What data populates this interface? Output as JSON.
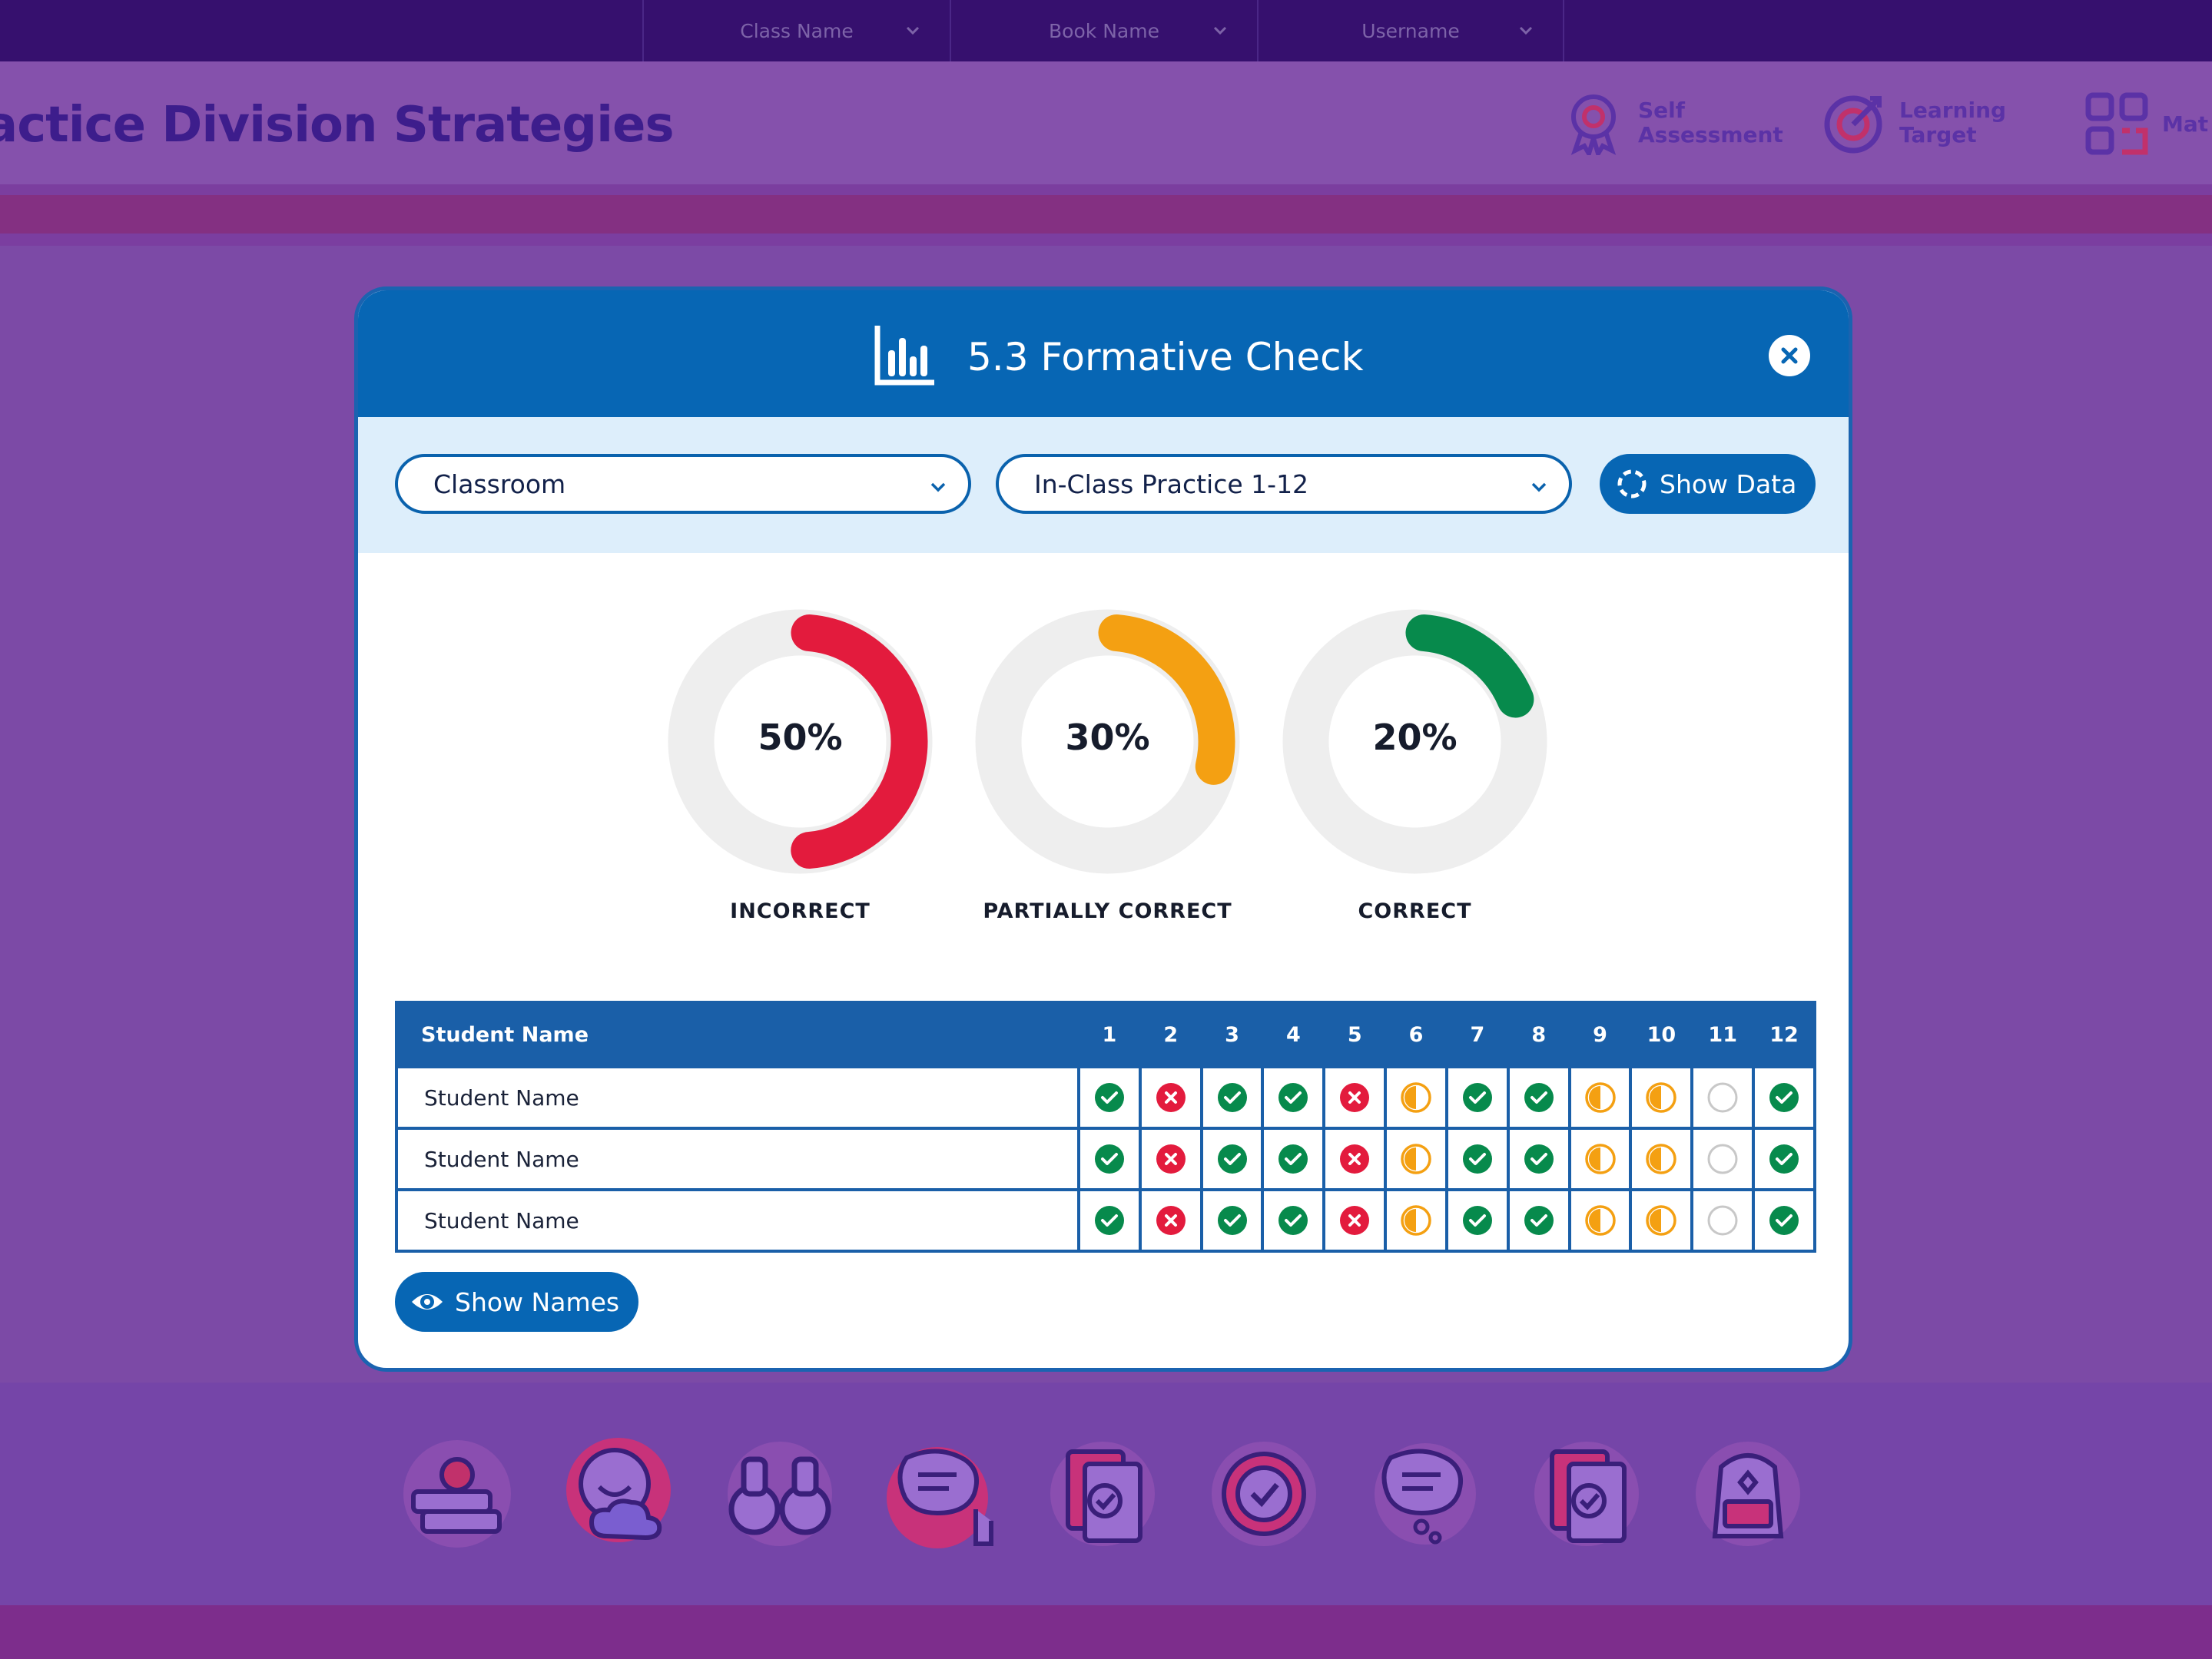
{
  "nav": {
    "dropdowns": [
      "Class Name",
      "Book Name",
      "Username"
    ]
  },
  "header": {
    "title": "actice Division Strategies",
    "tools": [
      {
        "label": "Self Assessment",
        "line1": "Self",
        "line2": "Assessment",
        "icon": "award-ribbon-icon"
      },
      {
        "label": "Learning Target",
        "line1": "Learning",
        "line2": "Target",
        "icon": "target-arrow-icon"
      },
      {
        "label": "Mat",
        "line1": "Mat",
        "line2": "",
        "icon": "grid-apps-icon"
      }
    ]
  },
  "modal": {
    "title": "5.3 Formative Check",
    "icon": "bar-chart-icon",
    "filters": {
      "scope_value": "Classroom",
      "practice_value": "In-Class Practice 1-12",
      "show_data_label": "Show Data"
    },
    "summary": [
      {
        "label": "INCORRECT",
        "percent_text": "50%",
        "percent": 50,
        "color": "#e31b3d"
      },
      {
        "label": "PARTIALLY CORRECT",
        "percent_text": "30%",
        "percent": 30,
        "color": "#f4a012"
      },
      {
        "label": "CORRECT",
        "percent_text": "20%",
        "percent": 20,
        "color": "#078a4c"
      }
    ],
    "table": {
      "name_header": "Student Name",
      "question_headers": [
        "1",
        "2",
        "3",
        "4",
        "5",
        "6",
        "7",
        "8",
        "9",
        "10",
        "11",
        "12"
      ],
      "rows": [
        {
          "name": "Student Name",
          "marks": [
            "correct",
            "incorrect",
            "correct",
            "correct",
            "incorrect",
            "partial",
            "correct",
            "correct",
            "partial",
            "partial",
            "unanswered",
            "correct"
          ]
        },
        {
          "name": "Student Name",
          "marks": [
            "correct",
            "incorrect",
            "correct",
            "correct",
            "incorrect",
            "partial",
            "correct",
            "correct",
            "partial",
            "partial",
            "unanswered",
            "correct"
          ]
        },
        {
          "name": "Student Name",
          "marks": [
            "correct",
            "incorrect",
            "correct",
            "correct",
            "incorrect",
            "partial",
            "correct",
            "correct",
            "partial",
            "partial",
            "unanswered",
            "correct"
          ]
        }
      ]
    },
    "show_names_label": "Show Names"
  },
  "colors": {
    "primary": "#0766b4",
    "correct": "#078a4c",
    "incorrect": "#e31b3d",
    "partial": "#f4a012",
    "unanswered": "#c8c8c8"
  },
  "bottom_icons": [
    "books-apple-icon",
    "happy-face-cloud-icon",
    "binoculars-icon",
    "chat-bubble-click-icon",
    "checked-document-icon",
    "badge-check-icon",
    "thought-bubble-icon",
    "checked-document-2-icon",
    "backpack-icon"
  ]
}
